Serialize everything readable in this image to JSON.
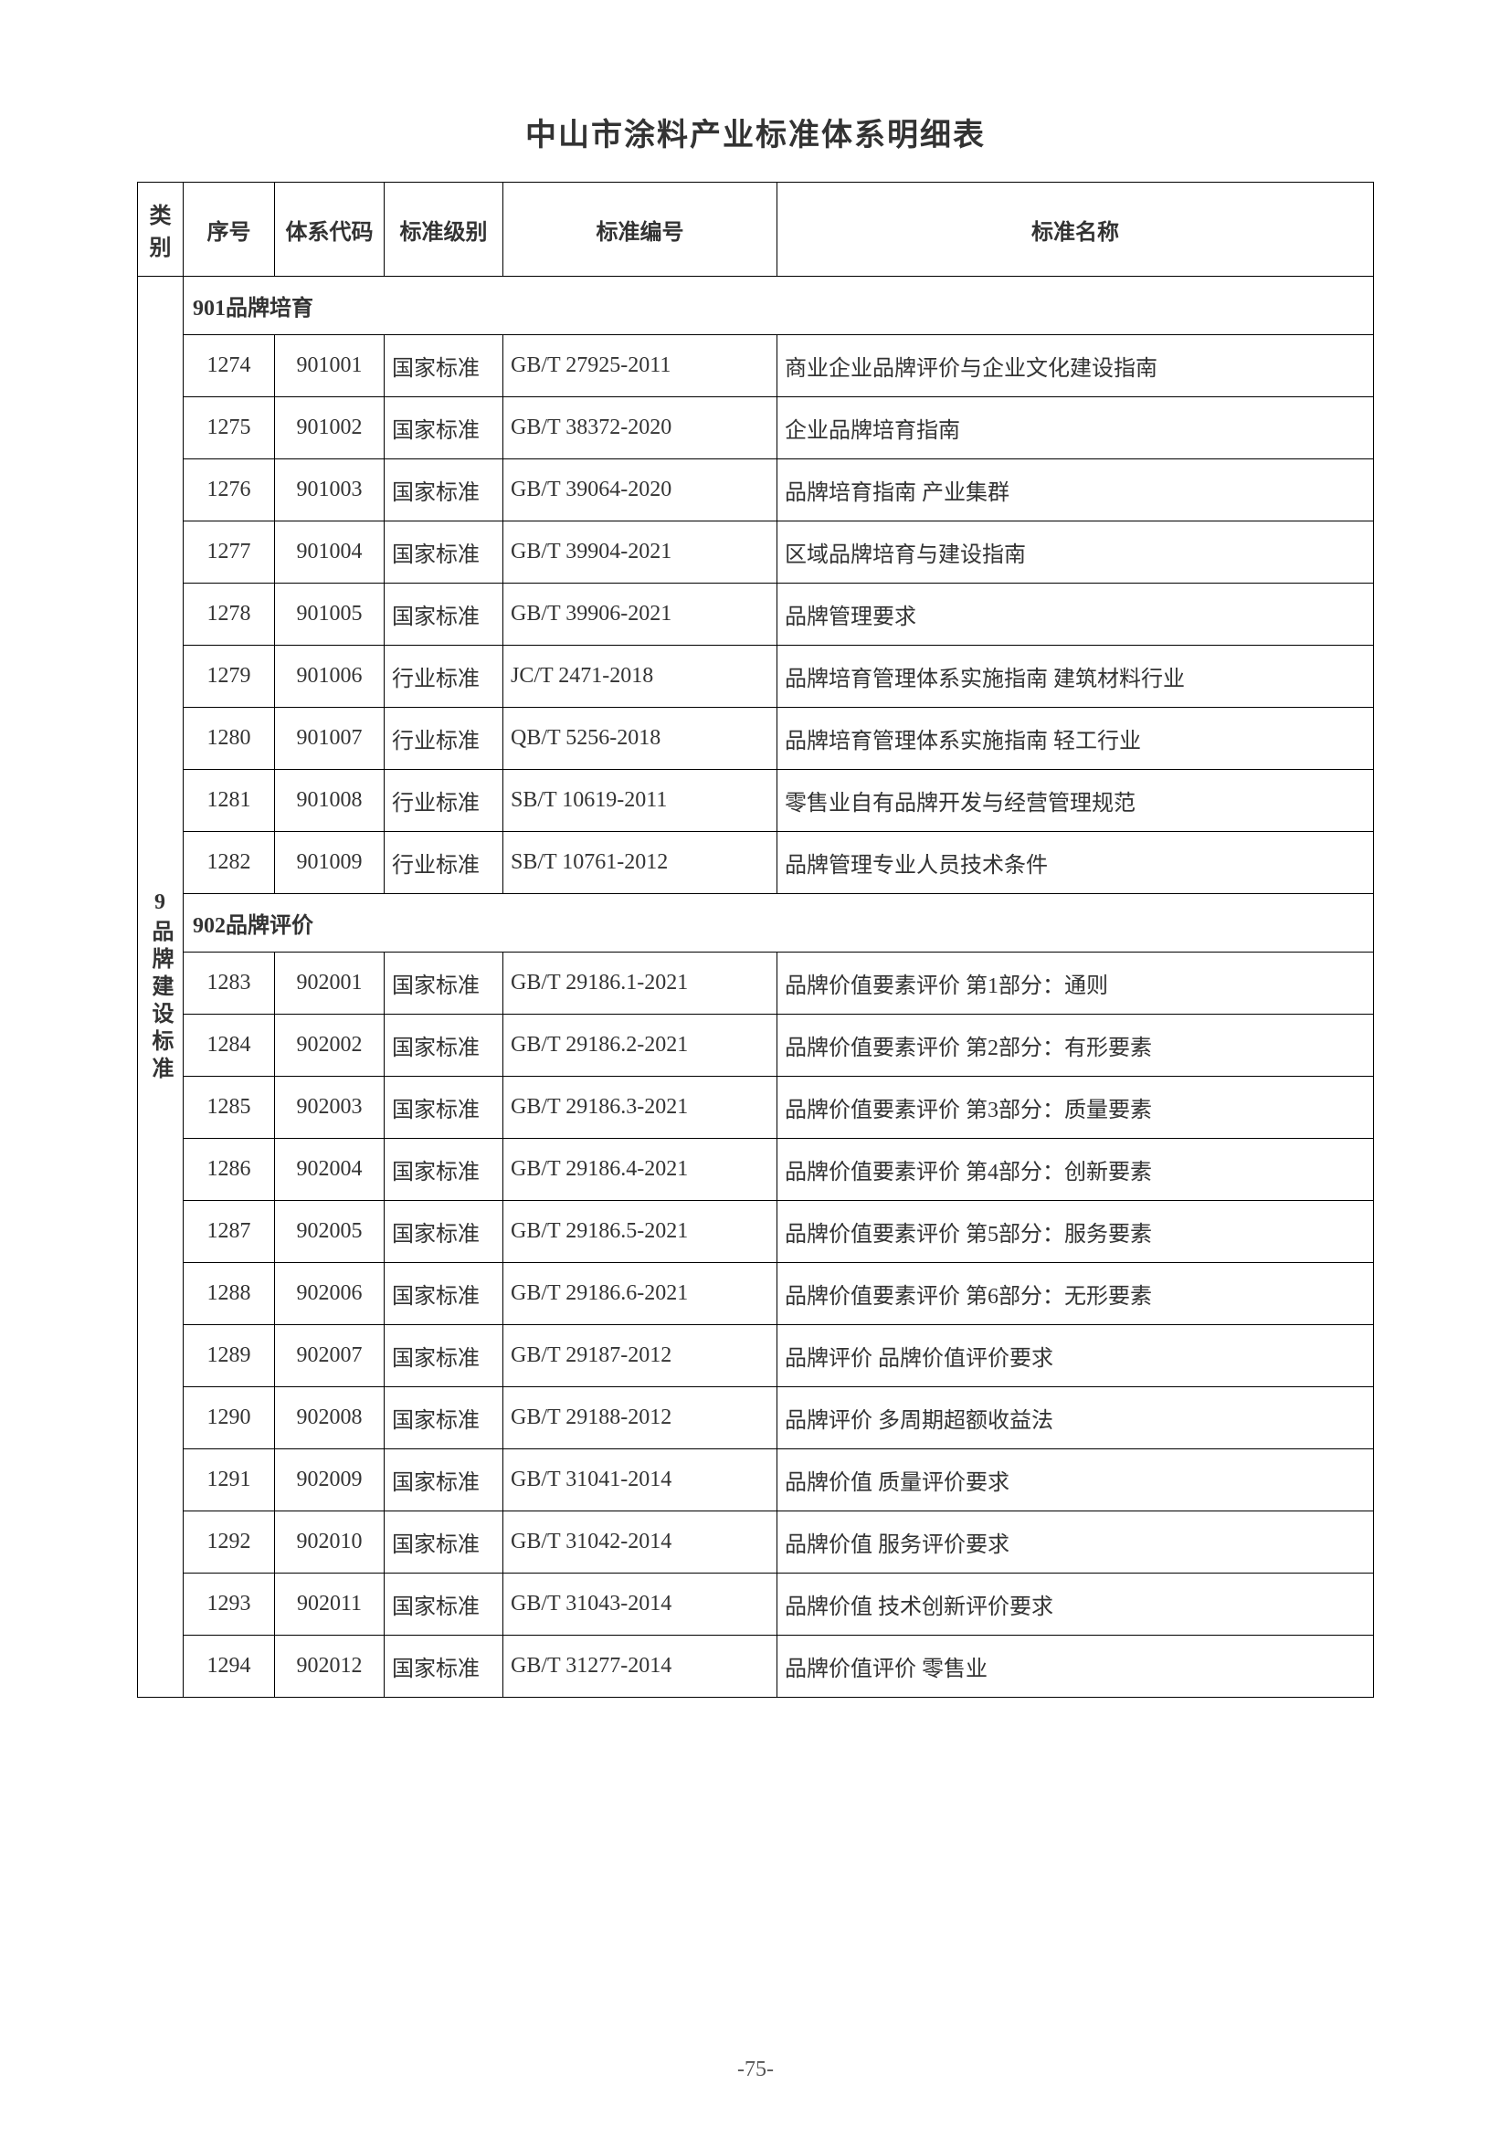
{
  "title": "中山市涂料产业标准体系明细表",
  "page_number": "-75-",
  "headers": {
    "category": "类别",
    "seq": "序号",
    "code": "体系代码",
    "level": "标准级别",
    "num": "标准编号",
    "name": "标准名称"
  },
  "category_label": "9品牌建设标准",
  "sections": [
    {
      "header": "901品牌培育",
      "rows": [
        {
          "seq": "1274",
          "code": "901001",
          "level": "国家标准",
          "num": "GB/T 27925-2011",
          "name": "商业企业品牌评价与企业文化建设指南"
        },
        {
          "seq": "1275",
          "code": "901002",
          "level": "国家标准",
          "num": "GB/T 38372-2020",
          "name": "企业品牌培育指南"
        },
        {
          "seq": "1276",
          "code": "901003",
          "level": "国家标准",
          "num": "GB/T 39064-2020",
          "name": "品牌培育指南 产业集群"
        },
        {
          "seq": "1277",
          "code": "901004",
          "level": "国家标准",
          "num": "GB/T 39904-2021",
          "name": "区域品牌培育与建设指南"
        },
        {
          "seq": "1278",
          "code": "901005",
          "level": "国家标准",
          "num": "GB/T 39906-2021",
          "name": "品牌管理要求"
        },
        {
          "seq": "1279",
          "code": "901006",
          "level": "行业标准",
          "num": "JC/T 2471-2018",
          "name": "品牌培育管理体系实施指南 建筑材料行业"
        },
        {
          "seq": "1280",
          "code": "901007",
          "level": "行业标准",
          "num": "QB/T 5256-2018",
          "name": "品牌培育管理体系实施指南 轻工行业"
        },
        {
          "seq": "1281",
          "code": "901008",
          "level": "行业标准",
          "num": "SB/T 10619-2011",
          "name": "零售业自有品牌开发与经营管理规范"
        },
        {
          "seq": "1282",
          "code": "901009",
          "level": "行业标准",
          "num": "SB/T 10761-2012",
          "name": "品牌管理专业人员技术条件"
        }
      ]
    },
    {
      "header": "902品牌评价",
      "rows": [
        {
          "seq": "1283",
          "code": "902001",
          "level": "国家标准",
          "num": "GB/T 29186.1-2021",
          "name": "品牌价值要素评价 第1部分：通则"
        },
        {
          "seq": "1284",
          "code": "902002",
          "level": "国家标准",
          "num": "GB/T 29186.2-2021",
          "name": "品牌价值要素评价 第2部分：有形要素"
        },
        {
          "seq": "1285",
          "code": "902003",
          "level": "国家标准",
          "num": "GB/T 29186.3-2021",
          "name": "品牌价值要素评价 第3部分：质量要素"
        },
        {
          "seq": "1286",
          "code": "902004",
          "level": "国家标准",
          "num": "GB/T 29186.4-2021",
          "name": "品牌价值要素评价 第4部分：创新要素"
        },
        {
          "seq": "1287",
          "code": "902005",
          "level": "国家标准",
          "num": "GB/T 29186.5-2021",
          "name": "品牌价值要素评价 第5部分：服务要素"
        },
        {
          "seq": "1288",
          "code": "902006",
          "level": "国家标准",
          "num": "GB/T 29186.6-2021",
          "name": "品牌价值要素评价 第6部分：无形要素"
        },
        {
          "seq": "1289",
          "code": "902007",
          "level": "国家标准",
          "num": "GB/T 29187-2012",
          "name": "品牌评价 品牌价值评价要求"
        },
        {
          "seq": "1290",
          "code": "902008",
          "level": "国家标准",
          "num": "GB/T 29188-2012",
          "name": "品牌评价 多周期超额收益法"
        },
        {
          "seq": "1291",
          "code": "902009",
          "level": "国家标准",
          "num": "GB/T 31041-2014",
          "name": "品牌价值 质量评价要求"
        },
        {
          "seq": "1292",
          "code": "902010",
          "level": "国家标准",
          "num": "GB/T 31042-2014",
          "name": "品牌价值 服务评价要求"
        },
        {
          "seq": "1293",
          "code": "902011",
          "level": "国家标准",
          "num": "GB/T 31043-2014",
          "name": "品牌价值 技术创新评价要求"
        },
        {
          "seq": "1294",
          "code": "902012",
          "level": "国家标准",
          "num": "GB/T 31277-2014",
          "name": "品牌价值评价 零售业"
        }
      ]
    }
  ]
}
